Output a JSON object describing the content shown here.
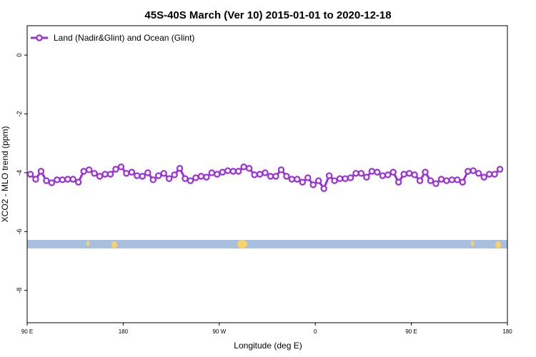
{
  "chart_data": {
    "type": "line",
    "title": "45S-40S March (Ver 10)   2015-01-01 to 2020-12-18",
    "x_label": "Longitude (deg E)",
    "y_label": "XCO2 - MLO trend (ppm)",
    "xlim": [
      90,
      540
    ],
    "xticks": [
      {
        "value": 90,
        "label": "90 E"
      },
      {
        "value": 180,
        "label": "180"
      },
      {
        "value": 270,
        "label": "90 W"
      },
      {
        "value": 360,
        "label": "0"
      },
      {
        "value": 450,
        "label": "90 E"
      },
      {
        "value": 540,
        "label": "180"
      }
    ],
    "ylim": [
      -9.1,
      1
    ],
    "yticks": [
      0,
      -2,
      -4,
      -6,
      -8
    ],
    "legend": "top-left",
    "x": [
      93,
      98,
      103,
      108,
      113,
      118,
      123,
      128,
      133,
      138,
      143,
      148,
      153,
      158,
      163,
      168,
      173,
      178,
      183,
      188,
      193,
      198,
      203,
      208,
      213,
      218,
      223,
      228,
      233,
      238,
      243,
      248,
      253,
      258,
      263,
      268,
      273,
      278,
      283,
      288,
      293,
      298,
      303,
      308,
      313,
      318,
      323,
      328,
      333,
      338,
      343,
      348,
      353,
      358,
      363,
      368,
      373,
      378,
      383,
      388,
      393,
      398,
      403,
      408,
      413,
      418,
      423,
      428,
      433,
      438,
      443,
      448,
      453,
      458,
      463,
      468,
      473,
      478,
      483,
      488,
      493,
      498,
      503,
      508,
      513,
      518,
      523,
      528,
      533
    ],
    "series": [
      {
        "name": "Land (Nadir&Glint) and Ocean (Glint)",
        "color": "#9b30d9",
        "values": [
          -4.05,
          -4.22,
          -3.95,
          -4.27,
          -4.34,
          -4.24,
          -4.24,
          -4.22,
          -4.22,
          -4.32,
          -3.95,
          -3.9,
          -4.02,
          -4.12,
          -4.05,
          -4.05,
          -3.88,
          -3.8,
          -4.02,
          -3.98,
          -4.1,
          -4.12,
          -4.0,
          -4.24,
          -4.1,
          -4.02,
          -4.2,
          -4.07,
          -3.85,
          -4.2,
          -4.27,
          -4.17,
          -4.12,
          -4.15,
          -4.0,
          -4.05,
          -3.98,
          -3.93,
          -3.95,
          -3.95,
          -3.8,
          -3.85,
          -4.07,
          -4.05,
          -4.0,
          -4.12,
          -4.12,
          -3.9,
          -4.12,
          -4.22,
          -4.22,
          -4.32,
          -4.17,
          -4.41,
          -4.27,
          -4.54,
          -4.1,
          -4.27,
          -4.2,
          -4.2,
          -4.17,
          -4.02,
          -4.02,
          -4.15,
          -3.95,
          -3.98,
          -4.1,
          -4.07,
          -3.98,
          -4.32,
          -4.05,
          -4.02,
          -4.07,
          -4.27,
          -3.98,
          -4.27,
          -4.37,
          -4.22,
          -4.27,
          -4.24,
          -4.24,
          -4.32,
          -3.95,
          -3.93,
          -4.02,
          -4.15,
          -4.05,
          -4.05,
          -3.88
        ]
      }
    ]
  }
}
